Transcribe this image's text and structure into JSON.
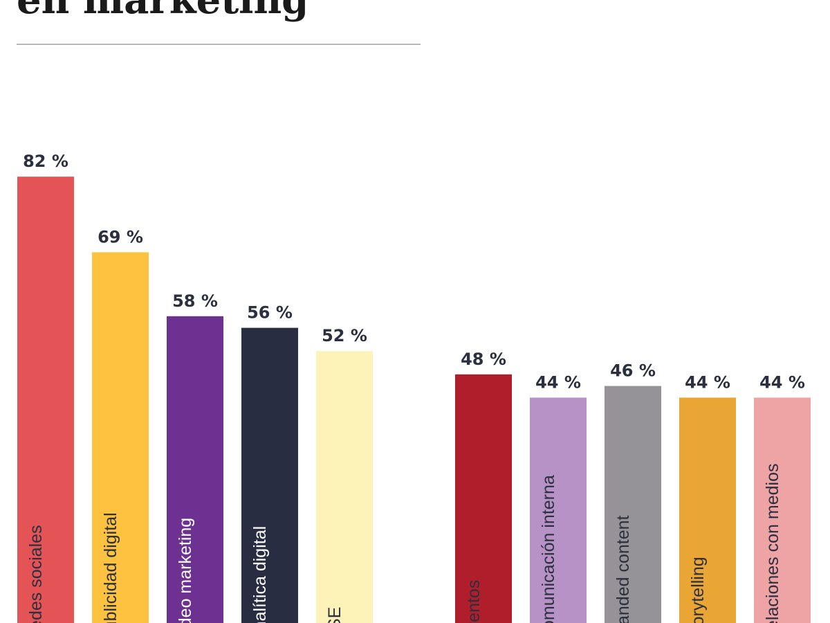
{
  "title": "en marketing",
  "chart_data": {
    "type": "bar",
    "title": "en marketing",
    "xlabel": "",
    "ylabel": "",
    "unit": "%",
    "ylim": [
      0,
      100
    ],
    "grid": false,
    "legend": "none",
    "bars": [
      {
        "label": "Redes sociales",
        "value": 82,
        "value_label": "82 %",
        "color": "#e45356",
        "label_color": "#2b2f3e"
      },
      {
        "label": "Publicidad digital",
        "value": 69,
        "value_label": "69 %",
        "color": "#fcc240",
        "label_color": "#2b2f3e"
      },
      {
        "label": "Video marketing",
        "value": 58,
        "value_label": "58 %",
        "color": "#6d3191",
        "label_color": "#ffffff"
      },
      {
        "label": "Analítica digital",
        "value": 56,
        "value_label": "56 %",
        "color": "#282d42",
        "label_color": "#ffffff"
      },
      {
        "label": "RSE",
        "value": 52,
        "value_label": "52 %",
        "color": "#fdf3b8",
        "label_color": "#2b2f3e"
      },
      {
        "label": "Eventos",
        "value": 48,
        "value_label": "48 %",
        "color": "#b01d2b",
        "label_color": "#2b2f3e"
      },
      {
        "label": "Comunicación interna",
        "value": 44,
        "value_label": "44 %",
        "color": "#b692c6",
        "label_color": "#2b2f3e"
      },
      {
        "label": "Branded content",
        "value": 46,
        "value_label": "46 %",
        "color": "#959397",
        "label_color": "#2b2f3e"
      },
      {
        "label": "Storytelling",
        "value": 44,
        "value_label": "44 %",
        "color": "#e9a635",
        "label_color": "#2b2f3e"
      },
      {
        "label": "Relaciones con medios",
        "value": 44,
        "value_label": "44 %",
        "color": "#eea3a5",
        "label_color": "#2b2f3e"
      }
    ]
  }
}
